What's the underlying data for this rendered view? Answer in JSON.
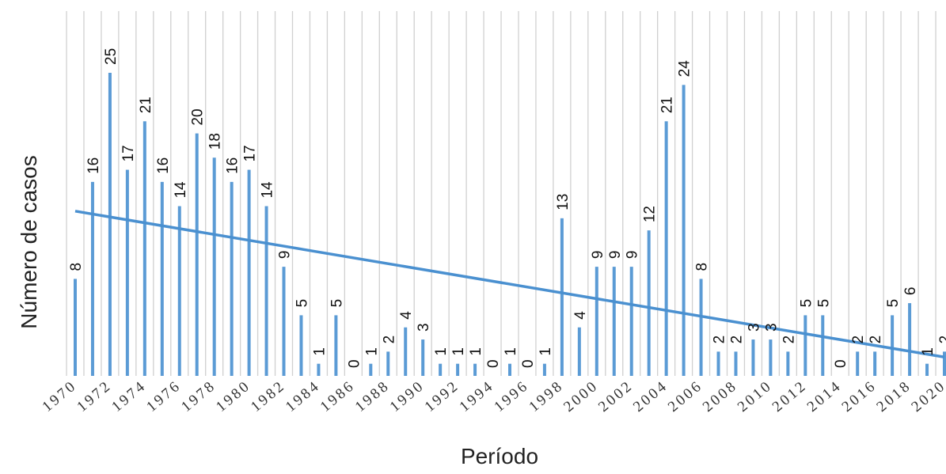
{
  "chart_data": {
    "type": "bar",
    "xlabel": "Período",
    "ylabel": "Número de casos",
    "categories": [
      "1970",
      "1971",
      "1972",
      "1973",
      "1974",
      "1975",
      "1976",
      "1977",
      "1978",
      "1979",
      "1980",
      "1981",
      "1982",
      "1983",
      "1984",
      "1985",
      "1986",
      "1987",
      "1988",
      "1989",
      "1990",
      "1991",
      "1992",
      "1993",
      "1994",
      "1995",
      "1996",
      "1997",
      "1998",
      "1999",
      "2000",
      "2001",
      "2002",
      "2003",
      "2004",
      "2005",
      "2006",
      "2007",
      "2008",
      "2009",
      "2010",
      "2011",
      "2012",
      "2013",
      "2014",
      "2015",
      "2016",
      "2017",
      "2018",
      "2019",
      "2020"
    ],
    "tick_labels": [
      "1970",
      "1972",
      "1974",
      "1976",
      "1978",
      "1980",
      "1982",
      "1984",
      "1986",
      "1988",
      "1990",
      "1992",
      "1994",
      "1996",
      "1998",
      "2000",
      "2002",
      "2004",
      "2006",
      "2008",
      "2010",
      "2012",
      "2014",
      "2016",
      "2018",
      "2020"
    ],
    "series": [
      {
        "values": [
          8,
          16,
          25,
          17,
          21,
          16,
          14,
          20,
          18,
          16,
          17,
          14,
          9,
          5,
          1,
          5,
          0,
          1,
          2,
          4,
          3,
          1,
          1,
          1,
          0,
          1,
          0,
          1,
          13,
          4,
          9,
          9,
          9,
          12,
          21,
          24,
          8,
          2,
          2,
          3,
          3,
          2,
          5,
          5,
          0,
          2,
          2,
          5,
          6,
          1,
          2
        ],
        "color": "#5b9bd5"
      }
    ],
    "trendline": {
      "type": "linear",
      "color": "#4a90d0"
    },
    "ylim": [
      0,
      26
    ],
    "grid": "vertical",
    "data_labels": true
  }
}
